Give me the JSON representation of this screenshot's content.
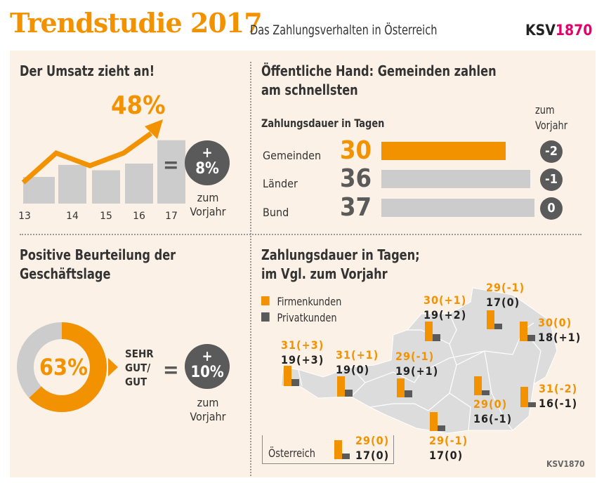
{
  "header": {
    "title": "Trendstudie 2017",
    "subtitle": "Das Zahlungsverhalten in Österreich",
    "logo": "KSV1870",
    "logo_parts": [
      "KSV",
      "1870"
    ]
  },
  "colors": {
    "orange": "#f39200",
    "dark_gray": "#5a5a5a",
    "light_gray": "#cccccc",
    "panel": "#fbf1e6",
    "logo_accent": "#e2006a"
  },
  "umsatz": {
    "heading": "Der Umsatz zieht an!",
    "highlight": "48%",
    "equals": "=",
    "change_sign": "+",
    "change": "8%",
    "change_label": [
      "zum",
      "Vorjahr"
    ]
  },
  "beurteilung": {
    "heading": [
      "Positive Beurteilung der",
      "Geschäftslage"
    ],
    "label": [
      "SEHR",
      "GUT/",
      "GUT"
    ],
    "equals": "=",
    "change_sign": "+",
    "change": "10%",
    "change_label": [
      "zum",
      "Vorjahr"
    ]
  },
  "oeffentlich": {
    "heading": [
      "Öffentliche Hand: Gemeinden zahlen",
      "am schnellsten"
    ],
    "subheading": "Zahlungsdauer in Tagen",
    "delta_header": [
      "zum",
      "Vorjahr"
    ]
  },
  "karte": {
    "heading": [
      "Zahlungsdauer in Tagen;",
      "im Vgl. zum Vorjahr"
    ],
    "source": "KSV1870"
  },
  "chart_data": [
    {
      "type": "bar",
      "title": "Der Umsatz zieht an!",
      "categories": [
        "13",
        "14",
        "15",
        "16",
        "17"
      ],
      "values": [
        40,
        58,
        50,
        60,
        95
      ],
      "annotation": "48%",
      "legend": "none"
    },
    {
      "type": "donut",
      "title": "Positive Beurteilung der Geschäftslage",
      "values": [
        63,
        37
      ],
      "label": "63%"
    },
    {
      "type": "bar",
      "orientation": "horizontal",
      "title": "Zahlungsdauer in Tagen",
      "categories": [
        "Gemeinden",
        "Länder",
        "Bund"
      ],
      "values": [
        30,
        36,
        37
      ],
      "labels": [
        "30",
        "36",
        "37"
      ],
      "deltas": [
        "-2",
        "-1",
        "0"
      ],
      "highlight": "Gemeinden"
    },
    {
      "type": "bar",
      "title": "Zahlungsdauer in Tagen; im Vgl. zum Vorjahr",
      "legend": [
        "Firmenkunden",
        "Privatkunden"
      ],
      "regions": [
        {
          "firmen": 31,
          "privat": 19,
          "firmen_label": "31(+3)",
          "privat_label": "19(+3)"
        },
        {
          "firmen": 31,
          "privat": 19,
          "firmen_label": "31(+1)",
          "privat_label": "19(0)"
        },
        {
          "firmen": 29,
          "privat": 19,
          "firmen_label": "29(-1)",
          "privat_label": "19(+1)"
        },
        {
          "firmen": 30,
          "privat": 19,
          "firmen_label": "30(+1)",
          "privat_label": "19(+2)"
        },
        {
          "firmen": 29,
          "privat": 17,
          "firmen_label": "29(-1)",
          "privat_label": "17(0)"
        },
        {
          "firmen": 30,
          "privat": 18,
          "firmen_label": "30(0)",
          "privat_label": "18(+1)"
        },
        {
          "firmen": 29,
          "privat": 16,
          "firmen_label": "29(0)",
          "privat_label": "16(-1)"
        },
        {
          "firmen": 31,
          "privat": 16,
          "firmen_label": "31(-2)",
          "privat_label": "16(-1)"
        },
        {
          "firmen": 29,
          "privat": 17,
          "firmen_label": "29(-1)",
          "privat_label": "17(0)"
        }
      ],
      "total": {
        "name": "Österreich",
        "firmen": 29,
        "privat": 17,
        "firmen_label": "29(0)",
        "privat_label": "17(0)"
      }
    }
  ]
}
